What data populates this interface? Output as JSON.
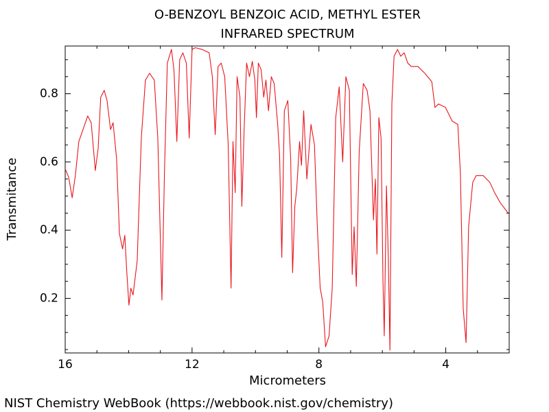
{
  "chart_data": {
    "type": "line",
    "title": "O-BENZOYL BENZOIC ACID, METHYL ESTER",
    "subtitle": "INFRARED SPECTRUM",
    "xlabel": "Micrometers",
    "ylabel": "Transmitance",
    "source": "NIST Chemistry WebBook (https://webbook.nist.gov/chemistry)",
    "xlim": [
      16,
      2
    ],
    "ylim": [
      0.04,
      0.94
    ],
    "xticks": [
      16,
      12,
      8,
      4
    ],
    "yticks": [
      0.2,
      0.4,
      0.6,
      0.8
    ],
    "xticks_minor": [
      15,
      14,
      13,
      11,
      10,
      9,
      7,
      6,
      5,
      3
    ],
    "yticks_minor": [
      0.05,
      0.1,
      0.15,
      0.25,
      0.3,
      0.35,
      0.45,
      0.5,
      0.55,
      0.65,
      0.7,
      0.75,
      0.85,
      0.9
    ],
    "grid": false,
    "series": [
      {
        "name": "Transmitance",
        "color": "#e8141b",
        "x": [
          16.0,
          15.89,
          15.78,
          15.68,
          15.57,
          15.42,
          15.29,
          15.18,
          15.05,
          14.96,
          14.88,
          14.77,
          14.68,
          14.57,
          14.49,
          14.38,
          14.29,
          14.19,
          14.12,
          14.06,
          13.99,
          13.93,
          13.86,
          13.73,
          13.6,
          13.47,
          13.34,
          13.19,
          13.08,
          12.95,
          12.87,
          12.78,
          12.65,
          12.57,
          12.48,
          12.39,
          12.29,
          12.18,
          12.09,
          12.0,
          11.9,
          11.68,
          11.46,
          11.36,
          11.27,
          11.18,
          11.08,
          10.97,
          10.86,
          10.77,
          10.71,
          10.64,
          10.58,
          10.49,
          10.43,
          10.36,
          10.28,
          10.19,
          10.1,
          10.02,
          9.97,
          9.91,
          9.82,
          9.74,
          9.67,
          9.59,
          9.5,
          9.41,
          9.3,
          9.24,
          9.17,
          9.09,
          8.98,
          8.89,
          8.83,
          8.76,
          8.7,
          8.61,
          8.55,
          8.48,
          8.38,
          8.25,
          8.14,
          8.05,
          7.96,
          7.88,
          7.79,
          7.68,
          7.58,
          7.47,
          7.36,
          7.25,
          7.15,
          7.04,
          6.95,
          6.89,
          6.82,
          6.73,
          6.6,
          6.48,
          6.39,
          6.28,
          6.22,
          6.17,
          6.11,
          6.04,
          5.98,
          5.94,
          5.87,
          5.81,
          5.76,
          5.7,
          5.63,
          5.52,
          5.42,
          5.31,
          5.2,
          5.09,
          4.88,
          4.66,
          4.44,
          4.34,
          4.23,
          4.01,
          3.8,
          3.62,
          3.54,
          3.45,
          3.36,
          3.28,
          3.15,
          3.04,
          2.82,
          2.61,
          2.46,
          2.28,
          2.03
        ],
        "values": [
          0.58,
          0.555,
          0.495,
          0.56,
          0.66,
          0.7,
          0.735,
          0.715,
          0.575,
          0.64,
          0.79,
          0.81,
          0.78,
          0.695,
          0.715,
          0.61,
          0.39,
          0.345,
          0.385,
          0.28,
          0.18,
          0.23,
          0.21,
          0.31,
          0.67,
          0.84,
          0.86,
          0.84,
          0.67,
          0.195,
          0.57,
          0.89,
          0.93,
          0.87,
          0.66,
          0.9,
          0.92,
          0.89,
          0.67,
          0.93,
          0.935,
          0.93,
          0.92,
          0.85,
          0.68,
          0.88,
          0.89,
          0.85,
          0.65,
          0.23,
          0.66,
          0.51,
          0.85,
          0.79,
          0.47,
          0.69,
          0.89,
          0.85,
          0.895,
          0.84,
          0.73,
          0.89,
          0.87,
          0.79,
          0.84,
          0.75,
          0.85,
          0.83,
          0.71,
          0.62,
          0.32,
          0.75,
          0.78,
          0.61,
          0.275,
          0.47,
          0.52,
          0.66,
          0.59,
          0.75,
          0.55,
          0.71,
          0.65,
          0.41,
          0.23,
          0.19,
          0.058,
          0.09,
          0.23,
          0.73,
          0.82,
          0.6,
          0.85,
          0.81,
          0.27,
          0.41,
          0.235,
          0.63,
          0.83,
          0.81,
          0.75,
          0.43,
          0.55,
          0.33,
          0.73,
          0.67,
          0.25,
          0.09,
          0.53,
          0.31,
          0.048,
          0.77,
          0.91,
          0.93,
          0.91,
          0.92,
          0.89,
          0.88,
          0.88,
          0.86,
          0.835,
          0.76,
          0.77,
          0.76,
          0.72,
          0.71,
          0.57,
          0.17,
          0.07,
          0.41,
          0.54,
          0.56,
          0.56,
          0.54,
          0.51,
          0.48,
          0.45
        ]
      }
    ]
  }
}
